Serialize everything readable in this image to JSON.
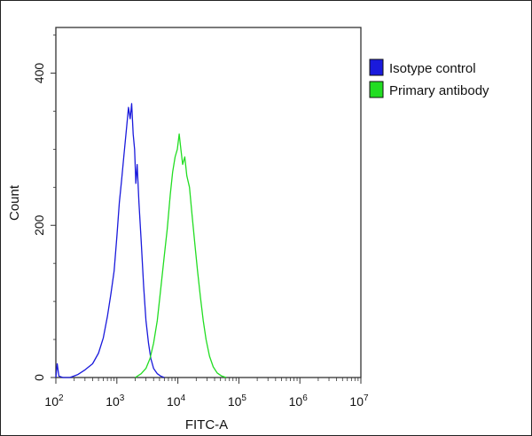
{
  "chart_data": {
    "type": "line",
    "title": "",
    "xlabel": "FITC-A",
    "ylabel": "Count",
    "x_scale": "log",
    "xlim": [
      100,
      10000000
    ],
    "ylim": [
      0,
      460
    ],
    "x_ticks": [
      {
        "value": 100,
        "base": "10",
        "exp": "2"
      },
      {
        "value": 1000,
        "base": "10",
        "exp": "3"
      },
      {
        "value": 10000,
        "base": "10",
        "exp": "4"
      },
      {
        "value": 100000,
        "base": "10",
        "exp": "5"
      },
      {
        "value": 1000000,
        "base": "10",
        "exp": "6"
      },
      {
        "value": 10000000,
        "base": "10",
        "exp": "7"
      }
    ],
    "y_ticks": [
      0,
      200,
      400
    ],
    "grid": false,
    "legend_position": "top-right",
    "series": [
      {
        "name": "Isotype control",
        "color": "#1a1adc",
        "points": [
          [
            100,
            0
          ],
          [
            105,
            18
          ],
          [
            112,
            2
          ],
          [
            130,
            0
          ],
          [
            170,
            0
          ],
          [
            230,
            4
          ],
          [
            300,
            10
          ],
          [
            400,
            18
          ],
          [
            500,
            32
          ],
          [
            600,
            52
          ],
          [
            700,
            80
          ],
          [
            800,
            110
          ],
          [
            900,
            140
          ],
          [
            1000,
            185
          ],
          [
            1100,
            230
          ],
          [
            1200,
            260
          ],
          [
            1300,
            290
          ],
          [
            1450,
            330
          ],
          [
            1550,
            355
          ],
          [
            1650,
            340
          ],
          [
            1750,
            360
          ],
          [
            1850,
            320
          ],
          [
            1950,
            300
          ],
          [
            2050,
            255
          ],
          [
            2150,
            280
          ],
          [
            2300,
            230
          ],
          [
            2500,
            180
          ],
          [
            2750,
            120
          ],
          [
            3000,
            75
          ],
          [
            3300,
            45
          ],
          [
            3600,
            25
          ],
          [
            4000,
            12
          ],
          [
            4600,
            5
          ],
          [
            5200,
            2
          ],
          [
            6000,
            0
          ]
        ]
      },
      {
        "name": "Primary antibody",
        "color": "#22dd22",
        "points": [
          [
            2000,
            0
          ],
          [
            2500,
            5
          ],
          [
            3000,
            12
          ],
          [
            3500,
            25
          ],
          [
            4000,
            45
          ],
          [
            4600,
            75
          ],
          [
            5300,
            120
          ],
          [
            6000,
            160
          ],
          [
            6700,
            195
          ],
          [
            7500,
            240
          ],
          [
            8200,
            270
          ],
          [
            9000,
            290
          ],
          [
            9800,
            300
          ],
          [
            10500,
            320
          ],
          [
            11200,
            300
          ],
          [
            12000,
            280
          ],
          [
            13000,
            290
          ],
          [
            14000,
            265
          ],
          [
            15500,
            250
          ],
          [
            17000,
            215
          ],
          [
            19000,
            175
          ],
          [
            21000,
            140
          ],
          [
            23500,
            105
          ],
          [
            26000,
            75
          ],
          [
            29000,
            50
          ],
          [
            33000,
            28
          ],
          [
            38000,
            14
          ],
          [
            44000,
            6
          ],
          [
            52000,
            2
          ],
          [
            62000,
            0
          ]
        ]
      }
    ]
  }
}
